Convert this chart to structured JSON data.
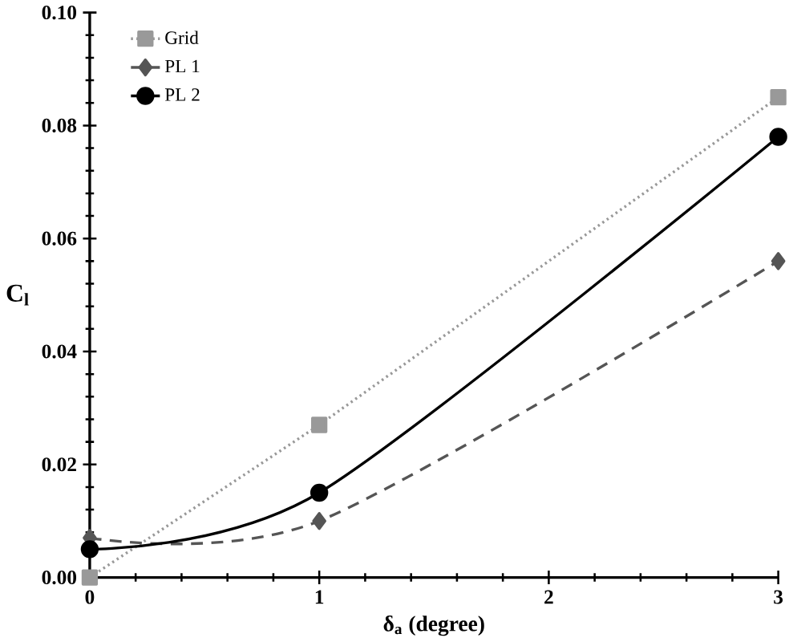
{
  "chart_data": {
    "type": "line",
    "xlabel": "δ$_{a}$ (degree)",
    "ylabel": "C$_{l}$",
    "x": [
      0,
      1,
      3
    ],
    "xlim": [
      0,
      3
    ],
    "xticks": [
      0,
      1,
      2,
      3
    ],
    "ylim": [
      0,
      0.1
    ],
    "yticks": [
      {
        "value": 0,
        "label": "0.00"
      },
      {
        "value": 0.02,
        "label": "0.02"
      },
      {
        "value": 0.04,
        "label": "0.04"
      },
      {
        "value": 0.06,
        "label": "0.06"
      },
      {
        "value": 0.08,
        "label": "0.08"
      },
      {
        "value": 0.1,
        "label": "0.10"
      }
    ],
    "legend": "top left",
    "grid": false,
    "series": [
      {
        "name": "Grid",
        "color": "#999999",
        "values": [
          0.0,
          0.027,
          0.085
        ],
        "marker": "square",
        "line_style": "dotted"
      },
      {
        "name": "PL 1",
        "color": "#555555",
        "values": [
          0.007,
          0.01,
          0.056
        ],
        "marker": "diamond",
        "line_style": "dashed"
      },
      {
        "name": "PL 2",
        "color": "#000000",
        "values": [
          0.005,
          0.015,
          0.078
        ],
        "marker": "circle",
        "line_style": "solid"
      }
    ]
  }
}
